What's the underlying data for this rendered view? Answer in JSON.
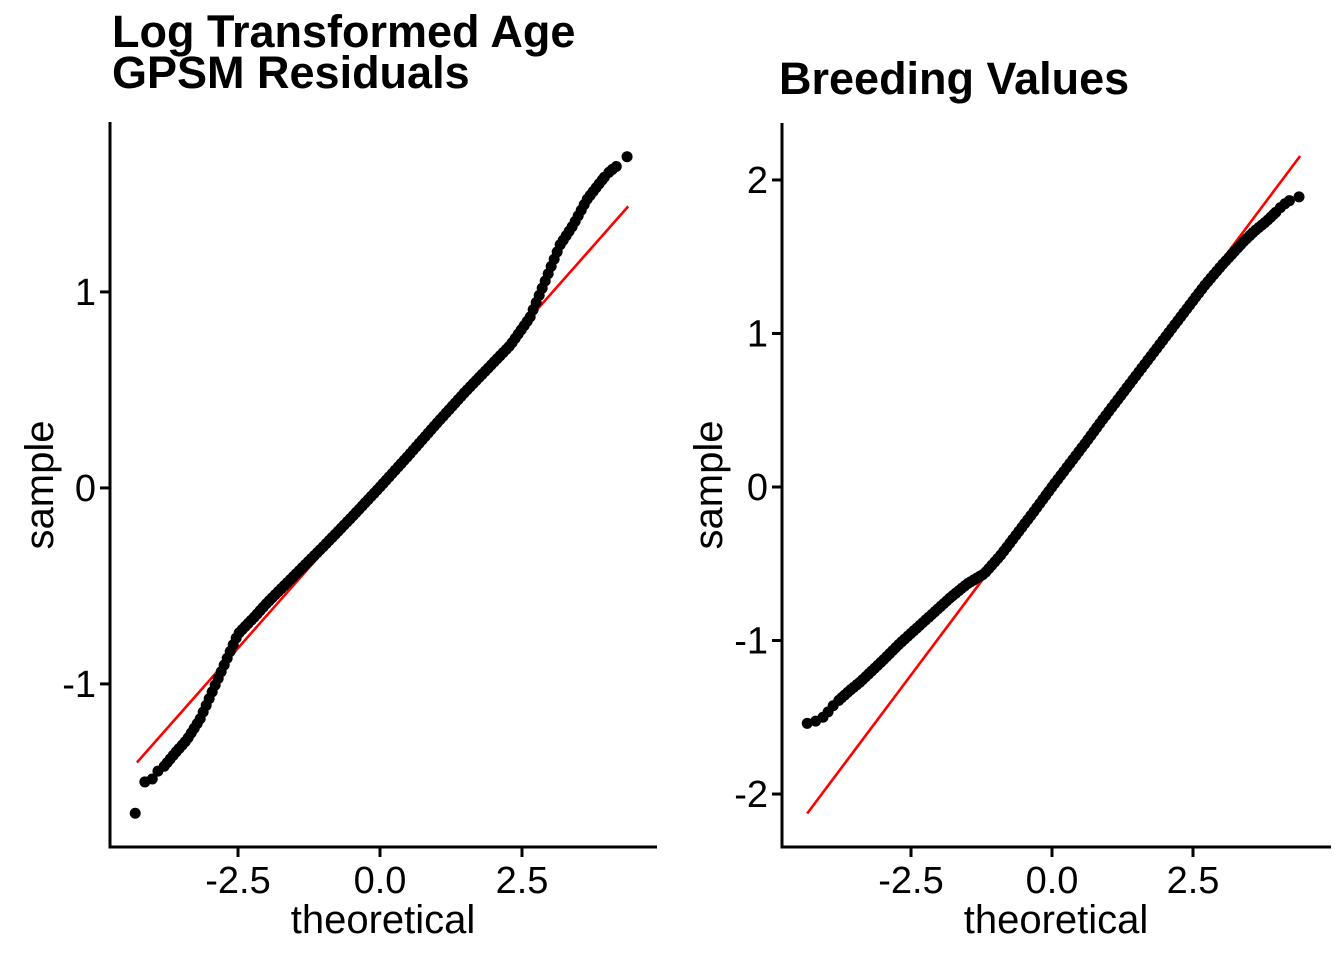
{
  "page": {
    "background": "#FFFFFF",
    "text_color": "#000000"
  },
  "chart_data": [
    {
      "type": "scatter",
      "variant": "qq-plot",
      "title_lines": [
        "Log Transformed Age",
        "GPSM Residuals"
      ],
      "xlabel": "theoretical",
      "ylabel": "sample",
      "xlim": [
        -4.754,
        4.877
      ],
      "ylim": [
        -1.832,
        1.867
      ],
      "x_ticks": [
        {
          "value": -2.5,
          "label": "-2.5"
        },
        {
          "value": 0.0,
          "label": "0.0"
        },
        {
          "value": 2.5,
          "label": "2.5"
        }
      ],
      "y_ticks": [
        {
          "value": -1,
          "label": "-1"
        },
        {
          "value": 0,
          "label": "0"
        },
        {
          "value": 1,
          "label": "1"
        }
      ],
      "grid": false,
      "legend": false,
      "point_color": "#000000",
      "axis_color": "#000000",
      "qq_curve": [
        [
          -3.8,
          -1.42
        ],
        [
          -3.6,
          -1.35
        ],
        [
          -3.4,
          -1.285
        ],
        [
          -3.17,
          -1.18
        ],
        [
          -3.0,
          -1.07
        ],
        [
          -2.8,
          -0.94
        ],
        [
          -2.6,
          -0.81
        ],
        [
          -2.5,
          -0.745
        ],
        [
          -2.2,
          -0.655
        ],
        [
          -2.0,
          -0.59
        ],
        [
          -1.5,
          -0.445
        ],
        [
          -1.0,
          -0.3
        ],
        [
          -0.5,
          -0.15
        ],
        [
          0.0,
          0.005
        ],
        [
          0.5,
          0.165
        ],
        [
          1.0,
          0.33
        ],
        [
          1.5,
          0.49
        ],
        [
          2.0,
          0.64
        ],
        [
          2.3,
          0.73
        ],
        [
          2.64,
          0.87
        ],
        [
          2.9,
          1.05
        ],
        [
          3.17,
          1.24
        ],
        [
          3.4,
          1.34
        ],
        [
          3.64,
          1.47
        ],
        [
          3.8,
          1.53
        ],
        [
          3.95,
          1.585
        ]
      ],
      "lower_tail_points": [
        [
          -4.31,
          -1.66
        ],
        [
          -4.14,
          -1.5
        ],
        [
          -4.01,
          -1.485
        ],
        [
          -3.91,
          -1.445
        ]
      ],
      "upper_tail_points": [
        [
          4.03,
          1.61
        ],
        [
          4.09,
          1.625
        ],
        [
          4.16,
          1.64
        ],
        [
          4.35,
          1.69
        ]
      ],
      "ref_line": {
        "color": "#FF0000",
        "slope": 0.328,
        "intercept": 0.003,
        "t_range": [
          -4.28,
          4.37
        ]
      }
    },
    {
      "type": "scatter",
      "variant": "qq-plot",
      "title_lines": [
        "Breeding Values"
      ],
      "xlabel": "theoretical",
      "ylabel": "sample",
      "xlim": [
        -4.787,
        4.947
      ],
      "ylim": [
        -2.345,
        2.371
      ],
      "x_ticks": [
        {
          "value": -2.5,
          "label": "-2.5"
        },
        {
          "value": 0.0,
          "label": "0.0"
        },
        {
          "value": 2.5,
          "label": "2.5"
        }
      ],
      "y_ticks": [
        {
          "value": -2,
          "label": "-2"
        },
        {
          "value": -1,
          "label": "-1"
        },
        {
          "value": 0,
          "label": "0"
        },
        {
          "value": 1,
          "label": "1"
        },
        {
          "value": 2,
          "label": "2"
        }
      ],
      "grid": false,
      "legend": false,
      "point_color": "#000000",
      "axis_color": "#000000",
      "qq_curve": [
        [
          -3.78,
          -1.39
        ],
        [
          -3.6,
          -1.33
        ],
        [
          -3.4,
          -1.27
        ],
        [
          -3.2,
          -1.2
        ],
        [
          -3.0,
          -1.13
        ],
        [
          -2.7,
          -1.02
        ],
        [
          -2.4,
          -0.92
        ],
        [
          -2.1,
          -0.82
        ],
        [
          -1.8,
          -0.72
        ],
        [
          -1.5,
          -0.63
        ],
        [
          -1.2,
          -0.565
        ],
        [
          -0.9,
          -0.44
        ],
        [
          -0.6,
          -0.295
        ],
        [
          -0.3,
          -0.15
        ],
        [
          0.0,
          0.0
        ],
        [
          0.3,
          0.145
        ],
        [
          0.6,
          0.29
        ],
        [
          0.9,
          0.44
        ],
        [
          1.2,
          0.585
        ],
        [
          1.5,
          0.73
        ],
        [
          1.8,
          0.875
        ],
        [
          2.1,
          1.02
        ],
        [
          2.4,
          1.165
        ],
        [
          2.7,
          1.31
        ],
        [
          3.0,
          1.44
        ],
        [
          3.2,
          1.52
        ],
        [
          3.4,
          1.6
        ],
        [
          3.6,
          1.67
        ],
        [
          3.8,
          1.73
        ],
        [
          3.97,
          1.79
        ]
      ],
      "lower_tail_points": [
        [
          -4.34,
          -1.54
        ],
        [
          -4.19,
          -1.525
        ],
        [
          -4.06,
          -1.5
        ],
        [
          -3.97,
          -1.465
        ],
        [
          -3.88,
          -1.425
        ]
      ],
      "upper_tail_points": [
        [
          4.05,
          1.82
        ],
        [
          4.13,
          1.845
        ],
        [
          4.21,
          1.865
        ],
        [
          4.38,
          1.89
        ]
      ],
      "ref_line": {
        "color": "#FF0000",
        "slope": 0.49,
        "intercept": 0.0,
        "t_range": [
          -4.34,
          4.4
        ]
      }
    }
  ]
}
